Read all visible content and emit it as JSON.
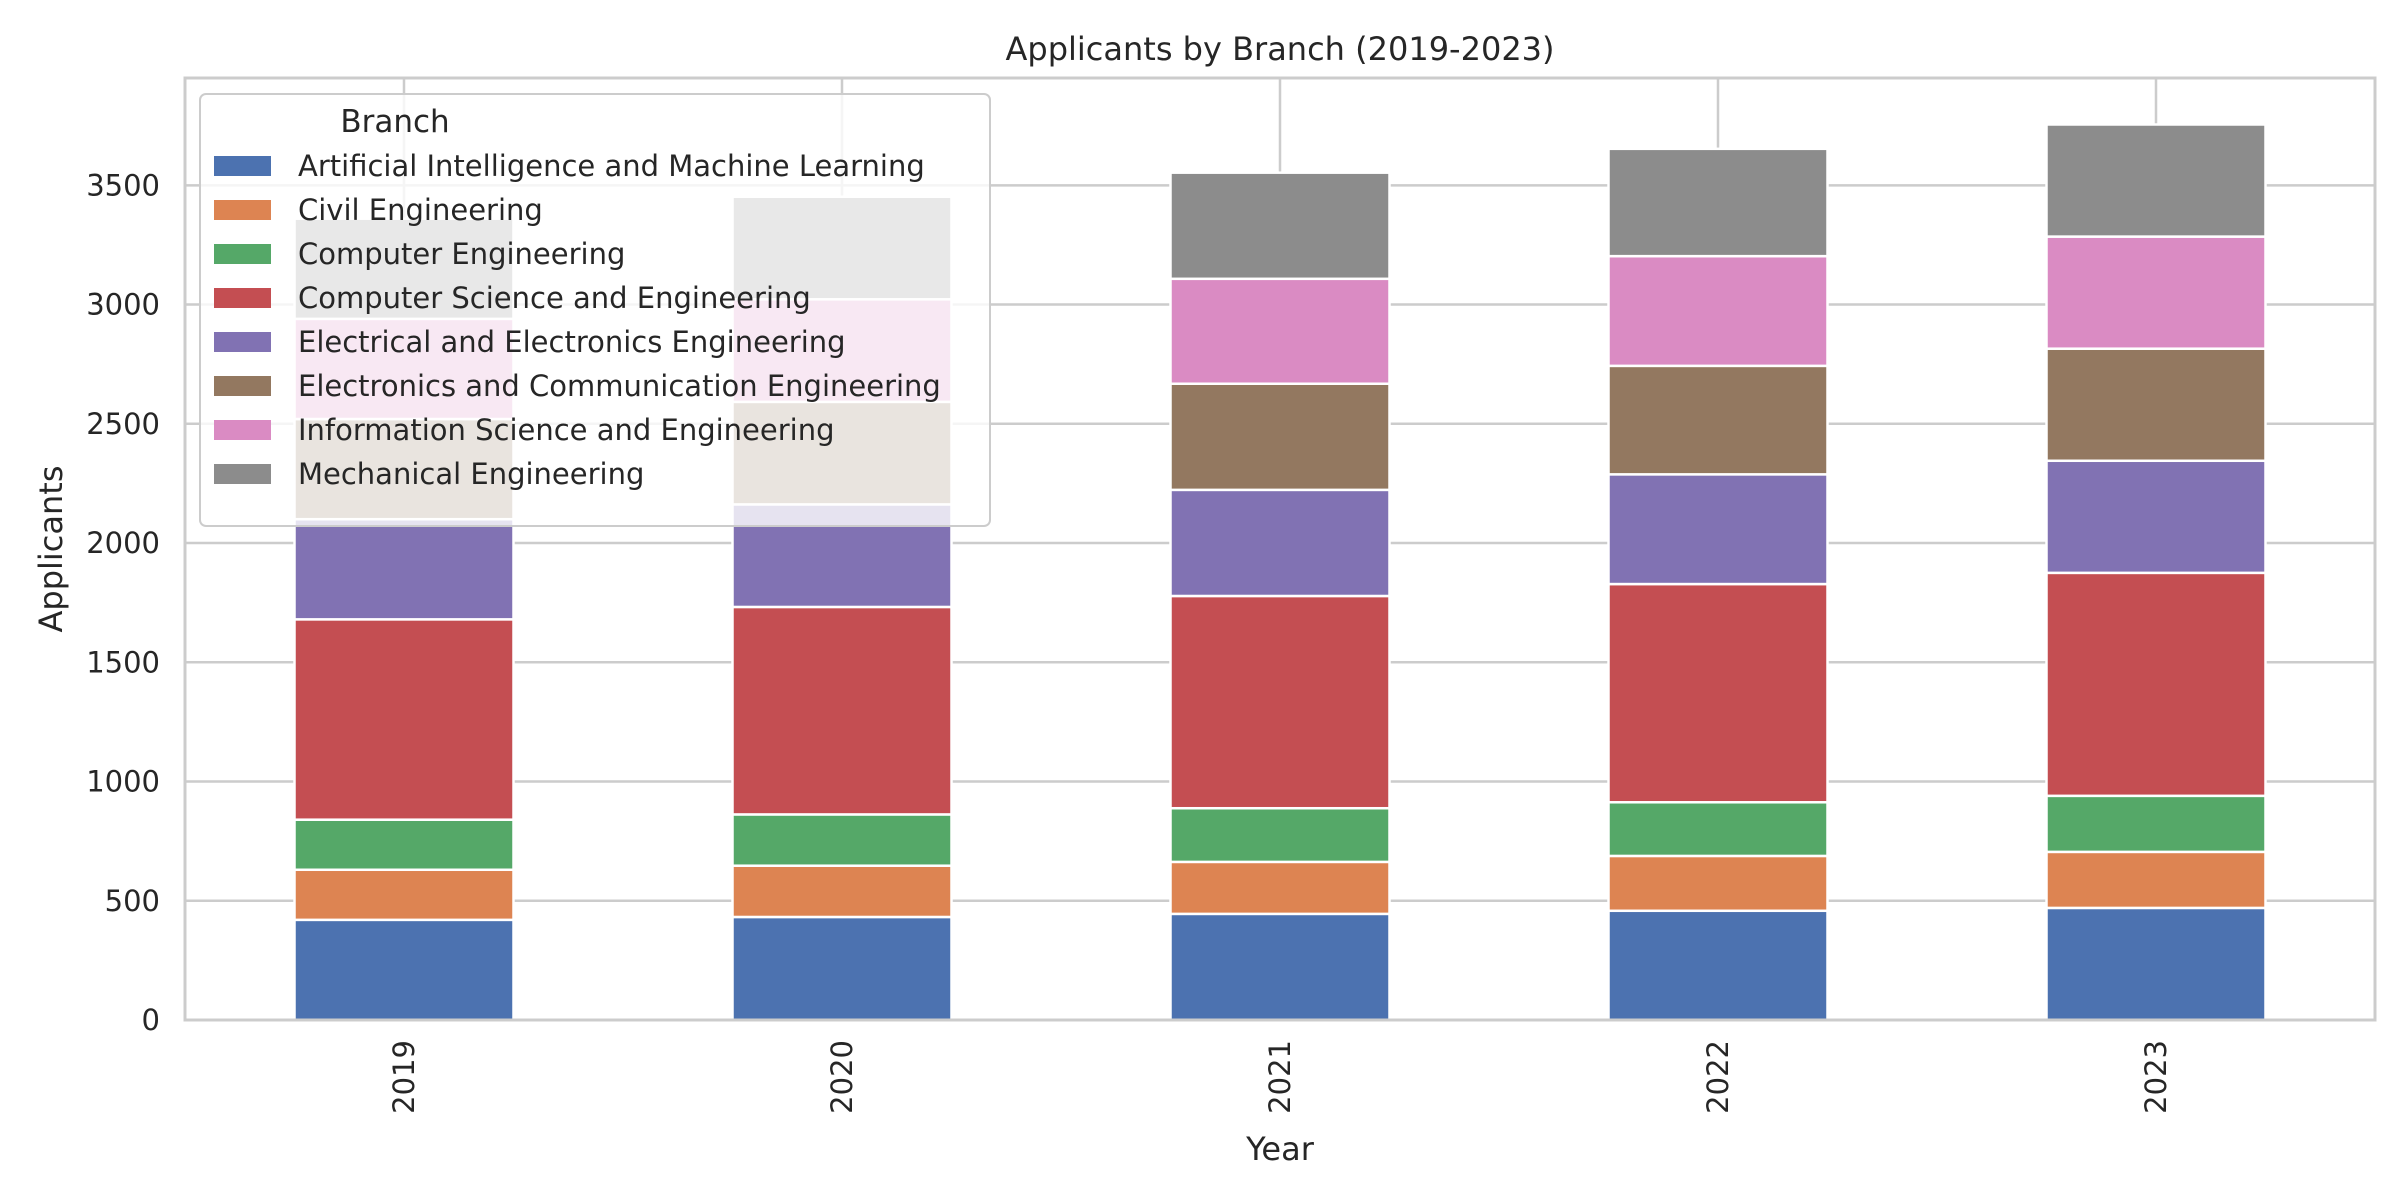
{
  "chart_data": {
    "type": "bar",
    "stacked": true,
    "title": "Applicants by Branch (2019-2023)",
    "xlabel": "Year",
    "ylabel": "Applicants",
    "categories": [
      "2019",
      "2020",
      "2021",
      "2022",
      "2023"
    ],
    "ylim": [
      0,
      3950
    ],
    "yticks": [
      0,
      500,
      1000,
      1500,
      2000,
      2500,
      3000,
      3500
    ],
    "grid": true,
    "legend": {
      "title": "Branch",
      "placement": "upper left"
    },
    "series": [
      {
        "name": "Artificial Intelligence and Machine Learning",
        "color": "#4c72b0",
        "values": [
          420,
          432,
          445,
          458,
          470
        ]
      },
      {
        "name": "Civil Engineering",
        "color": "#dd8452",
        "values": [
          210,
          215,
          218,
          230,
          235
        ]
      },
      {
        "name": "Computer Engineering",
        "color": "#55a868",
        "values": [
          210,
          215,
          225,
          225,
          235
        ]
      },
      {
        "name": "Computer Science and Engineering",
        "color": "#c44e52",
        "values": [
          840,
          870,
          890,
          915,
          935
        ]
      },
      {
        "name": "Electrical and Electronics Engineering",
        "color": "#8172b3",
        "values": [
          420,
          430,
          445,
          460,
          470
        ]
      },
      {
        "name": "Electronics and Communication Engineering",
        "color": "#937860",
        "values": [
          420,
          430,
          445,
          455,
          470
        ]
      },
      {
        "name": "Information Science and Engineering",
        "color": "#da8bc3",
        "values": [
          420,
          430,
          440,
          460,
          470
        ]
      },
      {
        "name": "Mechanical Engineering",
        "color": "#8c8c8c",
        "values": [
          420,
          430,
          445,
          450,
          470
        ]
      }
    ]
  }
}
